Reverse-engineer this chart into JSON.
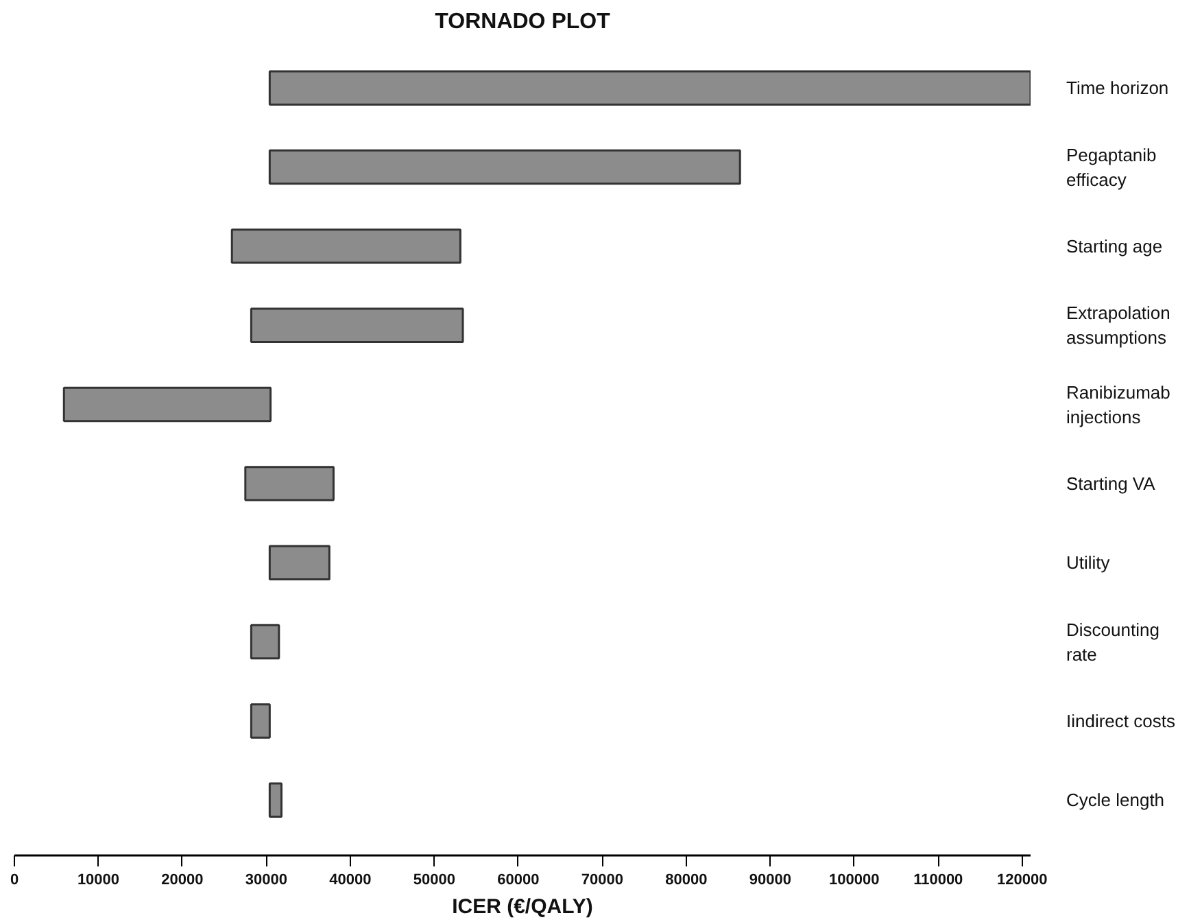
{
  "chart_data": {
    "type": "bar",
    "orientation": "horizontal",
    "title": "TORNADO PLOT",
    "xlabel": "ICER (€/QALY)",
    "categories": [
      "Time horizon",
      "Pegaptanib efficacy",
      "Starting age",
      "Extrapolation assumptions",
      "Ranibizumab injections",
      "Starting VA",
      "Utility",
      "Discounting rate",
      "Iindirect costs",
      "Cycle length"
    ],
    "base": [
      30400,
      30400,
      25900,
      28200,
      5900,
      27500,
      30400,
      28200,
      28200,
      30400
    ],
    "values": [
      90600,
      56000,
      27200,
      25200,
      24600,
      10500,
      7100,
      3300,
      2200,
      1400
    ],
    "color": "#8c8c8c",
    "xlim": [
      0,
      121000
    ],
    "xticks": [
      0,
      10000,
      20000,
      30000,
      40000,
      50000,
      60000,
      70000,
      80000,
      90000,
      100000,
      110000,
      120000
    ],
    "grid": false
  }
}
